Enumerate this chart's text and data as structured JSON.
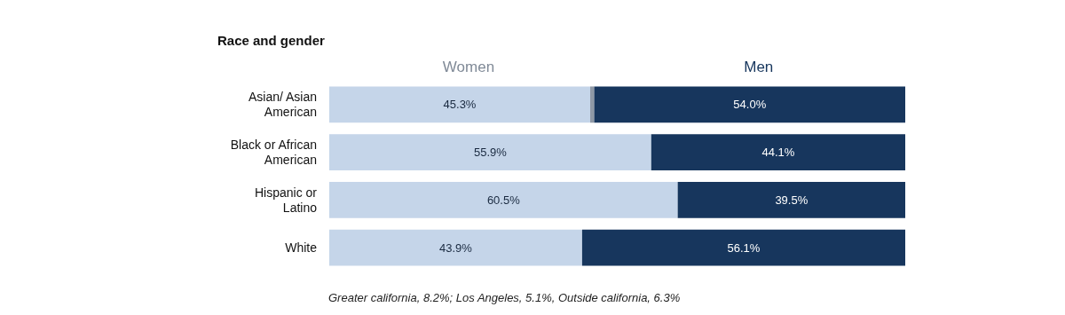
{
  "chart_data": {
    "type": "bar",
    "orientation": "horizontal",
    "stacked": true,
    "title": "Race and gender",
    "categories": [
      "Asian/ Asian\nAmerican",
      "Black or African\nAmerican",
      "Hispanic or\nLatino",
      "White"
    ],
    "series": [
      {
        "name": "Women",
        "color": "#c5d5e9",
        "values": [
          45.3,
          55.9,
          60.5,
          43.9
        ],
        "value_labels": [
          "45.3%",
          "55.9%",
          "60.5%",
          "43.9%"
        ]
      },
      {
        "color": "#8f99a6",
        "values": [
          0.7,
          0,
          0,
          0
        ],
        "value_labels": [
          null,
          null,
          null,
          null
        ]
      },
      {
        "name": "Men",
        "color": "#17365d",
        "values": [
          54.0,
          44.1,
          39.5,
          56.1
        ],
        "value_labels": [
          "54.0%",
          "44.1%",
          "39.5%",
          "56.1%"
        ]
      }
    ],
    "xlim": [
      0,
      100
    ],
    "tick_labels": "y",
    "grid": false,
    "legend": "top",
    "annotations": [
      "Greater california, 8.2%; Los Angeles, 5.1%, Outside california, 6.3%"
    ]
  }
}
